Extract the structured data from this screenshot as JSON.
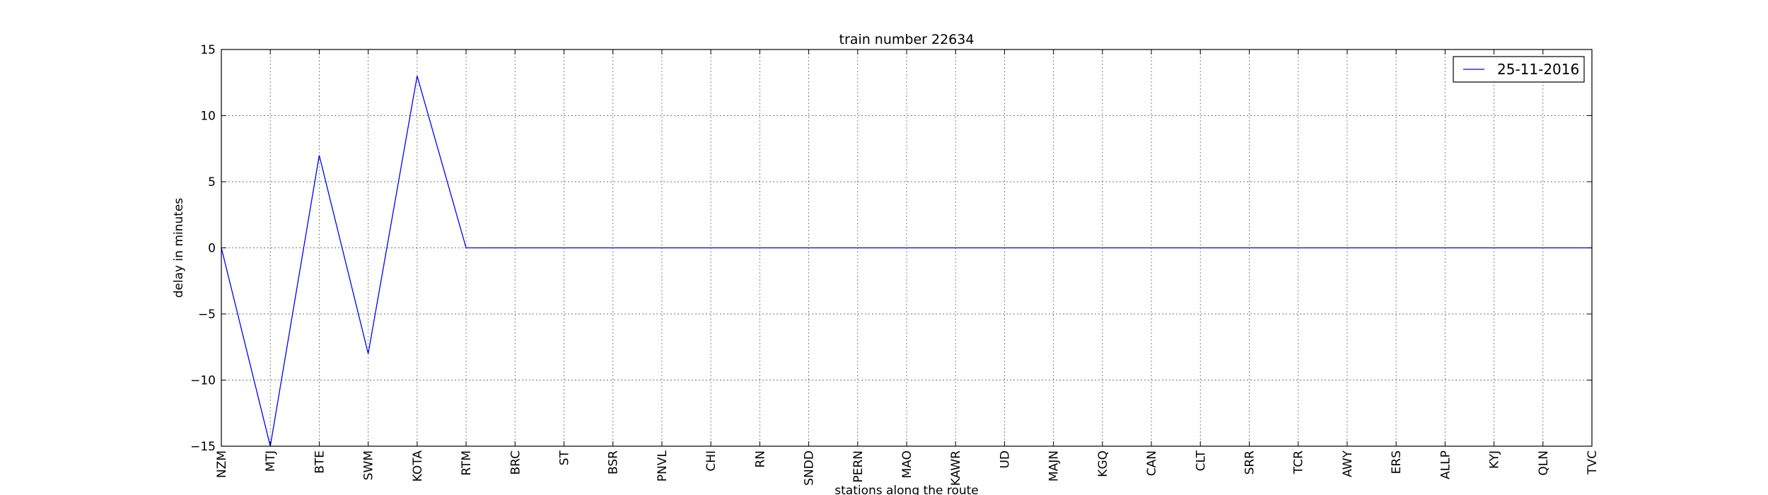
{
  "chart_data": {
    "type": "line",
    "title": "train number 22634",
    "xlabel": "stations along the route",
    "ylabel": "delay in minutes",
    "ylim": [
      -15,
      15
    ],
    "yticks": [
      -15,
      -10,
      -5,
      0,
      5,
      10,
      15
    ],
    "ytick_labels": [
      "−15",
      "−10",
      "−5",
      "0",
      "5",
      "10",
      "15"
    ],
    "grid": true,
    "legend_position": "top-right",
    "categories": [
      "NZM",
      "MTJ",
      "BTE",
      "SWM",
      "KOTA",
      "RTM",
      "BRC",
      "ST",
      "BSR",
      "PNVL",
      "CHI",
      "RN",
      "SNDD",
      "PERN",
      "MAO",
      "KAWR",
      "UD",
      "MAJN",
      "KGQ",
      "CAN",
      "CLT",
      "SRR",
      "TCR",
      "AWY",
      "ERS",
      "ALLP",
      "KYJ",
      "QLN",
      "TVC"
    ],
    "series": [
      {
        "name": "25-11-2016",
        "color": "#0000ff",
        "values": [
          0,
          -15,
          7,
          -8,
          13,
          0,
          0,
          0,
          0,
          0,
          0,
          0,
          0,
          0,
          0,
          0,
          0,
          0,
          0,
          0,
          0,
          0,
          0,
          0,
          0,
          0,
          0,
          0,
          0
        ]
      }
    ]
  }
}
